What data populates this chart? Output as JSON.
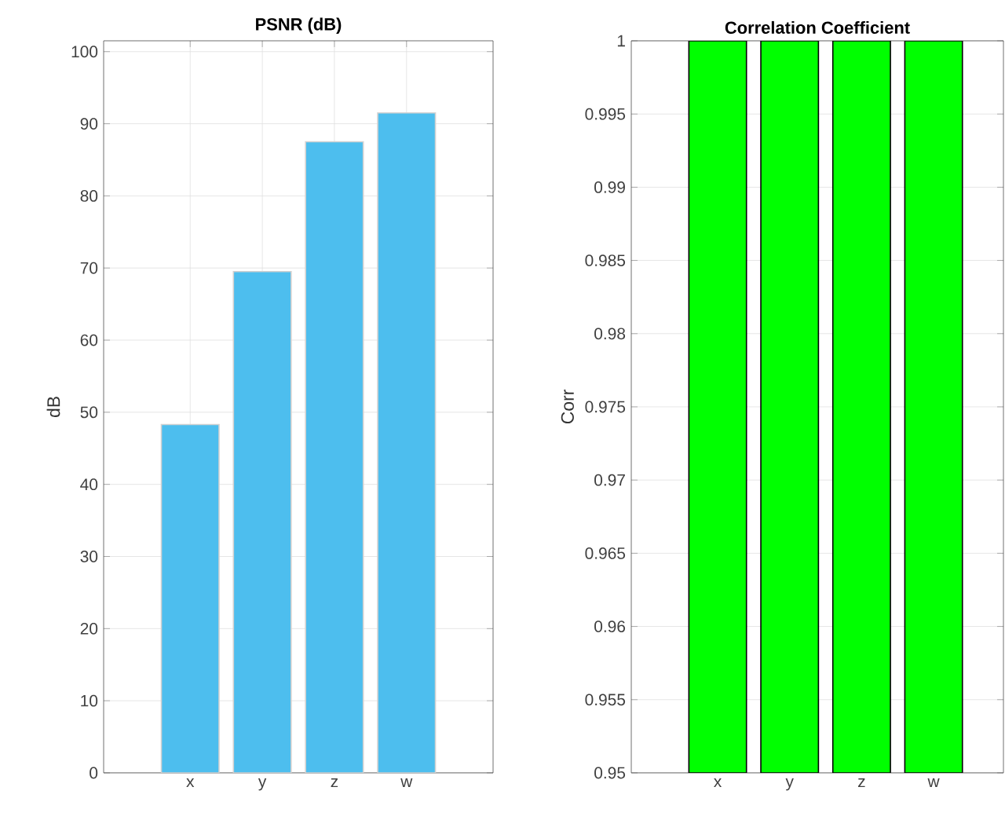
{
  "chart_data": [
    {
      "type": "bar",
      "title": "PSNR (dB)",
      "ylabel": "dB",
      "categories": [
        "x",
        "y",
        "z",
        "w"
      ],
      "values": [
        48.3,
        69.5,
        87.5,
        91.5
      ],
      "color": "#4dbeee",
      "ylim": [
        0,
        101.5
      ],
      "yticks": [
        0,
        10,
        20,
        30,
        40,
        50,
        60,
        70,
        80,
        90,
        100
      ],
      "grid": true
    },
    {
      "type": "bar",
      "title": "Correlation Coefficient",
      "ylabel": "Corr",
      "categories": [
        "x",
        "y",
        "z",
        "w"
      ],
      "values": [
        1,
        1,
        1,
        1
      ],
      "color": "#00ff00",
      "ylim": [
        0.95,
        1
      ],
      "yticks": [
        0.95,
        0.955,
        0.96,
        0.965,
        0.97,
        0.975,
        0.98,
        0.985,
        0.99,
        0.995,
        1
      ],
      "grid": "y"
    }
  ]
}
